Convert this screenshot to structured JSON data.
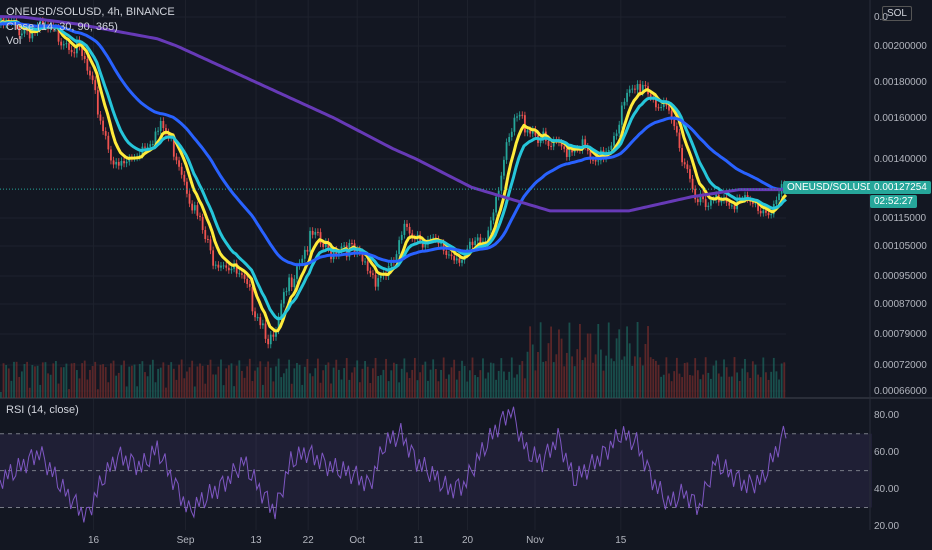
{
  "header": {
    "symbol_title": "ONEUSD/SOLUSD, 4h, BINANCE",
    "ma_legend": "Close (14, 30, 90, 365)",
    "vol_label": "Vol",
    "currency_badge": "SOL"
  },
  "price_badges": {
    "symbol_label": "ONEUSD/SOLUSD",
    "last_price": "0.00127254",
    "countdown": "02:52:27",
    "badge_color": "#26a69a"
  },
  "rsi": {
    "label": "RSI (14, close)",
    "ticks": [
      "80.00",
      "60.00",
      "40.00",
      "20.00"
    ],
    "color": "#7e57c2"
  },
  "chart_data": [
    {
      "type": "candlestick",
      "title": "ONEUSD/SOLUSD, 4h, BINANCE",
      "price_axis_ticks": [
        "0.0",
        "0.00200000",
        "0.00180000",
        "0.00160000",
        "0.00140000",
        "0.00115000",
        "0.00105000",
        "0.00095000",
        "0.00087000",
        "0.00079000",
        "0.00072000",
        "0.00066000"
      ],
      "price_tick_values": [
        0.0022,
        0.002,
        0.0018,
        0.0016,
        0.0014,
        0.00115,
        0.00105,
        0.00095,
        0.00087,
        0.00079,
        0.00072,
        0.00066
      ],
      "x_ticks": [
        "16",
        "Sep",
        "13",
        "22",
        "Oct",
        "11",
        "20",
        "Nov",
        "15"
      ],
      "x_tick_positions": [
        0.12,
        0.27,
        0.385,
        0.47,
        0.55,
        0.65,
        0.73,
        0.84,
        0.98
      ],
      "close_path": [
        [
          0.0,
          0.00215
        ],
        [
          0.03,
          0.00212
        ],
        [
          0.06,
          0.0021
        ],
        [
          0.09,
          0.00205
        ],
        [
          0.11,
          0.0019
        ],
        [
          0.13,
          0.0016
        ],
        [
          0.15,
          0.00135
        ],
        [
          0.17,
          0.0014
        ],
        [
          0.19,
          0.0015
        ],
        [
          0.21,
          0.00155
        ],
        [
          0.23,
          0.0014
        ],
        [
          0.25,
          0.00118
        ],
        [
          0.27,
          0.00102
        ],
        [
          0.29,
          0.001
        ],
        [
          0.31,
          0.00093
        ],
        [
          0.33,
          0.00085
        ],
        [
          0.35,
          0.00076
        ],
        [
          0.36,
          0.00085
        ],
        [
          0.38,
          0.001
        ],
        [
          0.4,
          0.00108
        ],
        [
          0.42,
          0.00103
        ],
        [
          0.44,
          0.00106
        ],
        [
          0.46,
          0.001
        ],
        [
          0.48,
          0.00095
        ],
        [
          0.5,
          0.00097
        ],
        [
          0.52,
          0.00112
        ],
        [
          0.54,
          0.00108
        ],
        [
          0.56,
          0.00104
        ],
        [
          0.58,
          0.00102
        ],
        [
          0.6,
          0.00103
        ],
        [
          0.62,
          0.00107
        ],
        [
          0.64,
          0.00135
        ],
        [
          0.66,
          0.0016
        ],
        [
          0.68,
          0.00155
        ],
        [
          0.7,
          0.00145
        ],
        [
          0.72,
          0.00145
        ],
        [
          0.74,
          0.00148
        ],
        [
          0.76,
          0.00135
        ],
        [
          0.78,
          0.0015
        ],
        [
          0.8,
          0.0017
        ],
        [
          0.82,
          0.0018
        ],
        [
          0.84,
          0.00168
        ],
        [
          0.86,
          0.00155
        ],
        [
          0.88,
          0.00132
        ],
        [
          0.9,
          0.00118
        ],
        [
          0.92,
          0.00125
        ],
        [
          0.94,
          0.00122
        ],
        [
          0.96,
          0.0012
        ],
        [
          0.98,
          0.00118
        ],
        [
          1.0,
          0.00127
        ]
      ],
      "ma": [
        {
          "length": 14,
          "color": "#ffeb3b",
          "lag": 1
        },
        {
          "length": 30,
          "color": "#26c6da",
          "lag": 3
        },
        {
          "length": 90,
          "color": "#2962ff",
          "lag": 10
        },
        {
          "length": 365,
          "color": "#673ab7",
          "path": [
            [
              0.0,
              0.00222
            ],
            [
              0.1,
              0.00215
            ],
            [
              0.2,
              0.00205
            ],
            [
              0.3,
              0.00185
            ],
            [
              0.4,
              0.00165
            ],
            [
              0.5,
              0.00145
            ],
            [
              0.6,
              0.00128
            ],
            [
              0.7,
              0.00118
            ],
            [
              0.8,
              0.00118
            ],
            [
              0.88,
              0.00124
            ],
            [
              0.94,
              0.00127
            ],
            [
              1.0,
              0.00127
            ]
          ]
        }
      ],
      "last_value": 0.00127254
    },
    {
      "type": "line",
      "title": "RSI (14, close)",
      "ylim": [
        20,
        85
      ],
      "band": [
        30,
        70
      ],
      "series_color": "#7e57c2",
      "rsi_path": [
        [
          0.0,
          45
        ],
        [
          0.02,
          50
        ],
        [
          0.05,
          60
        ],
        [
          0.08,
          40
        ],
        [
          0.11,
          25
        ],
        [
          0.13,
          45
        ],
        [
          0.15,
          58
        ],
        [
          0.18,
          52
        ],
        [
          0.2,
          62
        ],
        [
          0.22,
          45
        ],
        [
          0.24,
          28
        ],
        [
          0.27,
          38
        ],
        [
          0.29,
          45
        ],
        [
          0.31,
          55
        ],
        [
          0.33,
          40
        ],
        [
          0.35,
          28
        ],
        [
          0.37,
          55
        ],
        [
          0.39,
          60
        ],
        [
          0.42,
          52
        ],
        [
          0.45,
          48
        ],
        [
          0.47,
          42
        ],
        [
          0.49,
          65
        ],
        [
          0.51,
          70
        ],
        [
          0.53,
          55
        ],
        [
          0.55,
          48
        ],
        [
          0.57,
          40
        ],
        [
          0.59,
          42
        ],
        [
          0.61,
          58
        ],
        [
          0.63,
          72
        ],
        [
          0.65,
          83
        ],
        [
          0.67,
          60
        ],
        [
          0.69,
          55
        ],
        [
          0.71,
          68
        ],
        [
          0.73,
          45
        ],
        [
          0.75,
          52
        ],
        [
          0.77,
          60
        ],
        [
          0.79,
          70
        ],
        [
          0.81,
          65
        ],
        [
          0.83,
          45
        ],
        [
          0.85,
          32
        ],
        [
          0.87,
          38
        ],
        [
          0.89,
          30
        ],
        [
          0.91,
          55
        ],
        [
          0.93,
          48
        ],
        [
          0.95,
          42
        ],
        [
          0.97,
          45
        ],
        [
          1.0,
          72
        ]
      ]
    }
  ]
}
